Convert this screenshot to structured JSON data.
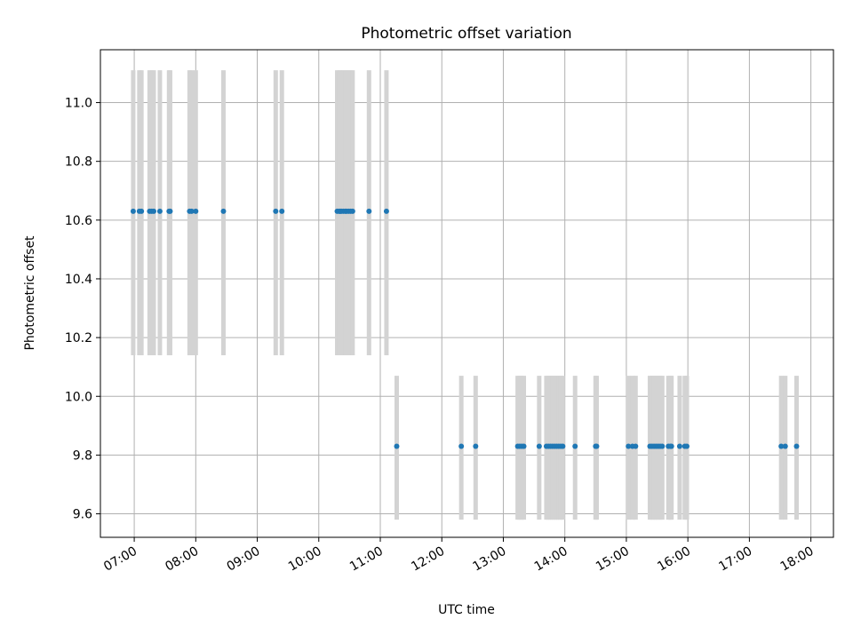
{
  "chart_data": {
    "type": "scatter",
    "title": "Photometric offset variation",
    "xlabel": "UTC time",
    "ylabel": "Photometric offset",
    "x_ticks": [
      "07:00",
      "08:00",
      "09:00",
      "10:00",
      "11:00",
      "12:00",
      "13:00",
      "14:00",
      "15:00",
      "16:00",
      "17:00",
      "18:00"
    ],
    "y_ticks": [
      "9.6",
      "9.8",
      "10.0",
      "10.2",
      "10.4",
      "10.6",
      "10.8",
      "11.0"
    ],
    "xlim": [
      "06:27",
      "18:22"
    ],
    "ylim": [
      9.52,
      11.18
    ],
    "grid": true,
    "colors": {
      "points": "#1f77b4",
      "errorbars": "#d3d3d3",
      "grid": "#b0b0b0"
    },
    "series": [
      {
        "y": 10.63,
        "yerr_low": 10.14,
        "yerr_high": 11.11,
        "x": [
          "06:59",
          "07:05",
          "07:07",
          "07:15",
          "07:17",
          "07:19",
          "07:25",
          "07:34",
          "07:35",
          "07:54",
          "07:56",
          "08:00",
          "08:27",
          "09:18",
          "09:24",
          "10:18",
          "10:20",
          "10:21",
          "10:22",
          "10:24",
          "10:26",
          "10:27",
          "10:29",
          "10:31",
          "10:33",
          "10:49",
          "11:06"
        ]
      },
      {
        "y": 9.83,
        "yerr_low": 9.58,
        "yerr_high": 10.07,
        "x": [
          "11:16",
          "12:19",
          "12:33",
          "13:14",
          "13:16",
          "13:18",
          "13:20",
          "13:35",
          "13:42",
          "13:44",
          "13:46",
          "13:48",
          "13:50",
          "13:52",
          "13:54",
          "13:56",
          "13:58",
          "14:10",
          "14:30",
          "14:31",
          "15:02",
          "15:06",
          "15:09",
          "15:23",
          "15:25",
          "15:27",
          "15:29",
          "15:31",
          "15:33",
          "15:35",
          "15:41",
          "15:43",
          "15:44",
          "15:52",
          "15:57",
          "15:59",
          "17:31",
          "17:35",
          "17:46"
        ]
      }
    ]
  }
}
